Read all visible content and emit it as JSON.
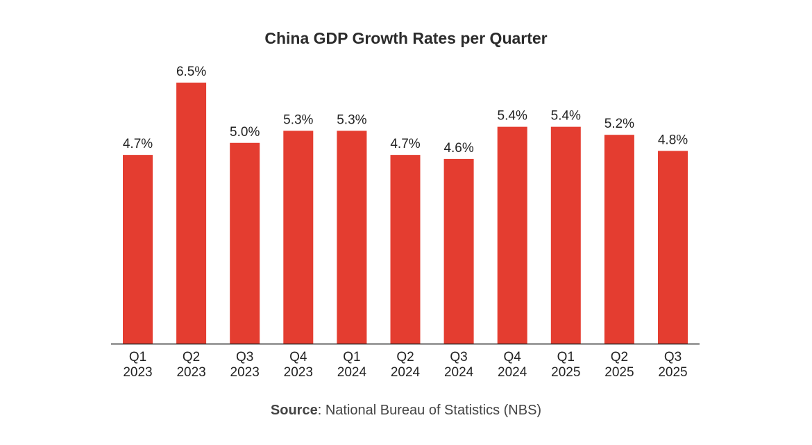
{
  "chart_data": {
    "type": "bar",
    "title": "China GDP Growth Rates per Quarter",
    "categories": [
      [
        "Q1",
        "2023"
      ],
      [
        "Q2",
        "2023"
      ],
      [
        "Q3",
        "2023"
      ],
      [
        "Q4",
        "2023"
      ],
      [
        "Q1",
        "2024"
      ],
      [
        "Q2",
        "2024"
      ],
      [
        "Q3",
        "2024"
      ],
      [
        "Q4",
        "2024"
      ],
      [
        "Q1",
        "2025"
      ],
      [
        "Q2",
        "2025"
      ],
      [
        "Q3",
        "2025"
      ]
    ],
    "values": [
      4.7,
      6.5,
      5.0,
      5.3,
      5.3,
      4.7,
      4.6,
      5.4,
      5.4,
      5.2,
      4.8
    ],
    "data_labels": [
      "4.7%",
      "6.5%",
      "5.0%",
      "5.3%",
      "5.3%",
      "4.7%",
      "4.6%",
      "5.4%",
      "5.4%",
      "5.2%",
      "4.8%"
    ],
    "ylim": [
      0,
      6.5
    ],
    "grid": false,
    "bar_color": "#E43D30",
    "xlabel": "",
    "ylabel": ""
  },
  "source": {
    "label": "Source",
    "text": ": National Bureau of Statistics (NBS)"
  }
}
